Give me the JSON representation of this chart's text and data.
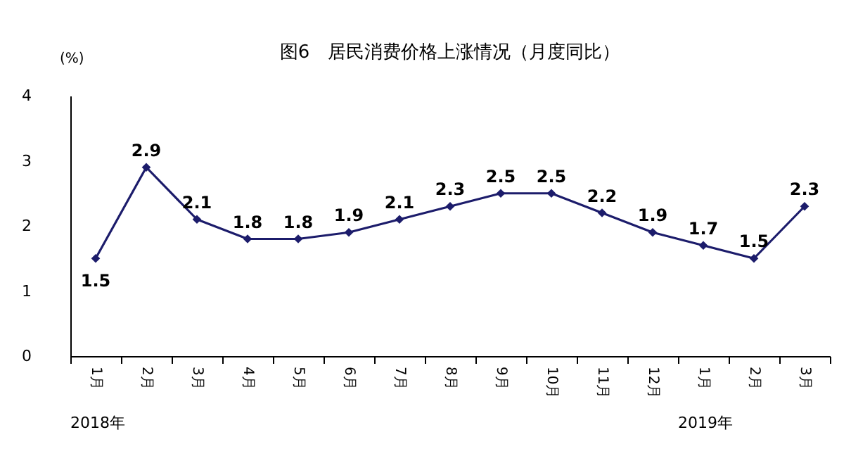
{
  "chart_data": {
    "type": "line",
    "title": "图6　居民消费价格上涨情况（月度同比）",
    "ylabel": "(%)",
    "categories": [
      "1月",
      "2月",
      "3月",
      "4月",
      "5月",
      "6月",
      "7月",
      "8月",
      "9月",
      "10月",
      "11月",
      "12月",
      "1月",
      "2月",
      "3月"
    ],
    "series": [
      {
        "color": "#1c1c6b",
        "values": [
          1.5,
          2.9,
          2.1,
          1.8,
          1.8,
          1.9,
          2.1,
          2.3,
          2.5,
          2.5,
          2.2,
          1.9,
          1.7,
          1.5,
          2.3
        ]
      }
    ],
    "ylim": [
      0,
      4
    ],
    "yticks": [
      0,
      1,
      2,
      3,
      4
    ],
    "grid": false,
    "legend": false,
    "marker": "diamond",
    "line_style": "solid",
    "data_labels": true,
    "annotations": [
      "2018年",
      "2019年"
    ]
  }
}
